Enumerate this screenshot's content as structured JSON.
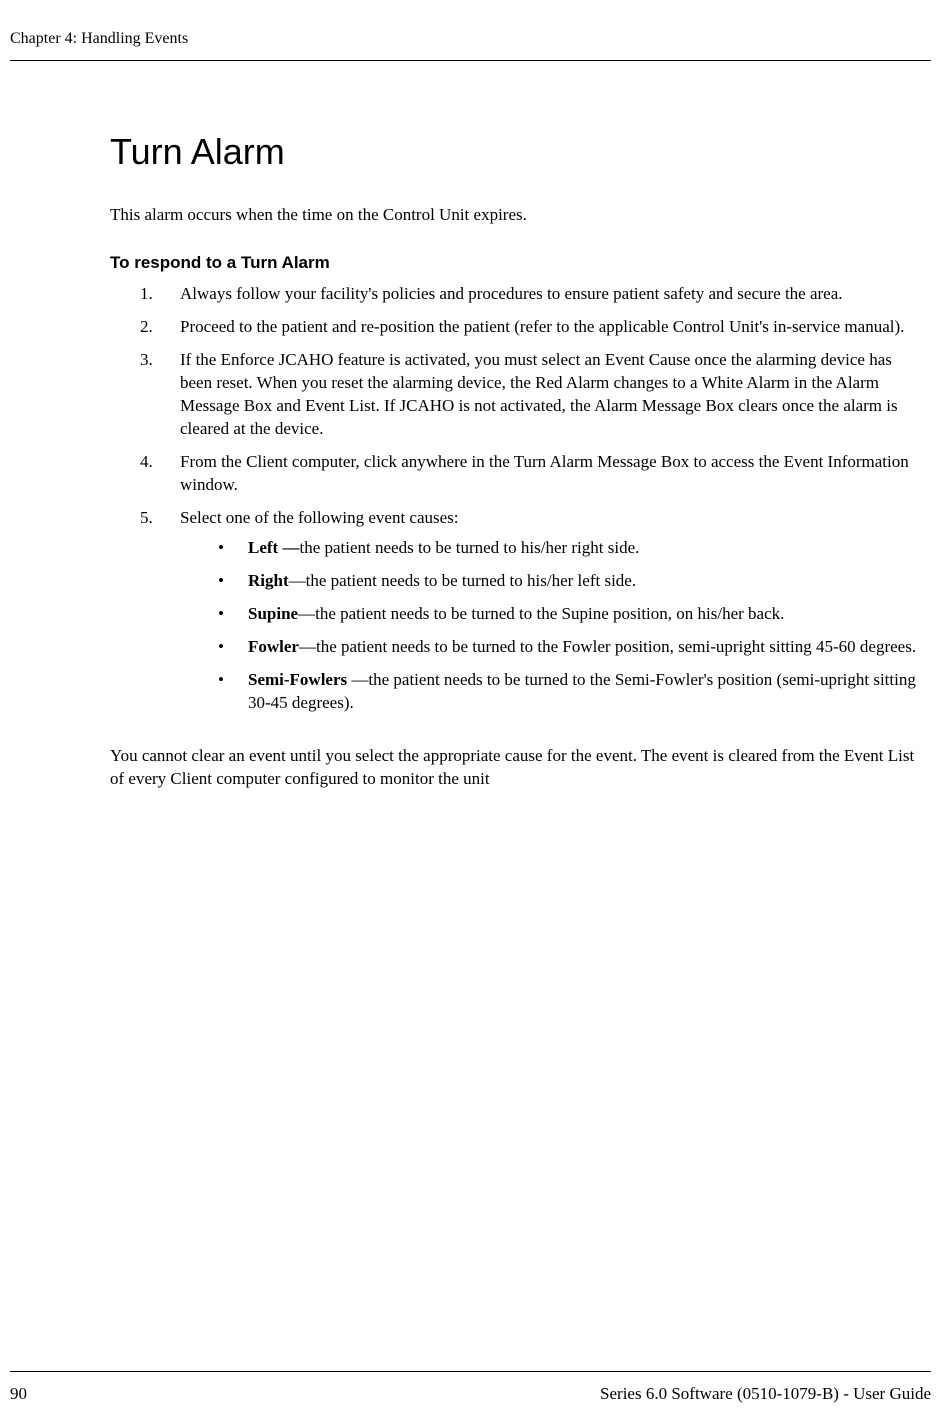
{
  "header": {
    "chapter": "Chapter 4: Handling Events"
  },
  "content": {
    "heading": "Turn Alarm",
    "intro": "This alarm occurs when the time on the Control Unit expires.",
    "subHeading": "To respond to a Turn Alarm",
    "steps": [
      {
        "num": "1.",
        "text": "Always follow your facility's policies and procedures to ensure patient safety and secure the area."
      },
      {
        "num": "2.",
        "text": "Proceed to the patient and re-position the patient (refer to the applicable Control Unit's in-service manual)."
      },
      {
        "num": "3.",
        "text": "If the Enforce JCAHO feature is activated, you must select an Event Cause once the alarming device has been reset. When you reset the alarming device, the Red Alarm changes to a White Alarm in the Alarm Message Box and Event List. If JCAHO is not activated, the Alarm Message Box clears once the alarm is cleared at the device."
      },
      {
        "num": "4.",
        "text": "From the Client computer, click anywhere in the Turn Alarm Message Box to access the Event Information window."
      },
      {
        "num": "5.",
        "text": "Select one of the following event causes:"
      }
    ],
    "bullets": [
      {
        "term": "Left —",
        "text": "the patient needs to be turned to his/her right side."
      },
      {
        "term": "Right",
        "sep": "—",
        "text": "the patient needs to be turned to his/her left side."
      },
      {
        "term": "Supine",
        "sep": "—",
        "text": "the patient needs to be turned to the Supine position, on his/her back."
      },
      {
        "term": "Fowler",
        "sep": "—",
        "text": "the patient needs to be turned to the Fowler position, semi-upright sitting 45-60 degrees."
      },
      {
        "term": "Semi-Fowlers ",
        "sep": "—",
        "text": "the patient needs to be turned to the Semi-Fowler's position (semi-upright sitting 30-45 degrees)."
      }
    ],
    "closing": "You cannot clear an event until you select the appropriate cause for the event. The event is cleared from the Event List of every Client computer configured to monitor the unit"
  },
  "footer": {
    "pageNumber": "90",
    "docInfo": "Series 6.0 Software (0510-1079-B) - User Guide"
  }
}
